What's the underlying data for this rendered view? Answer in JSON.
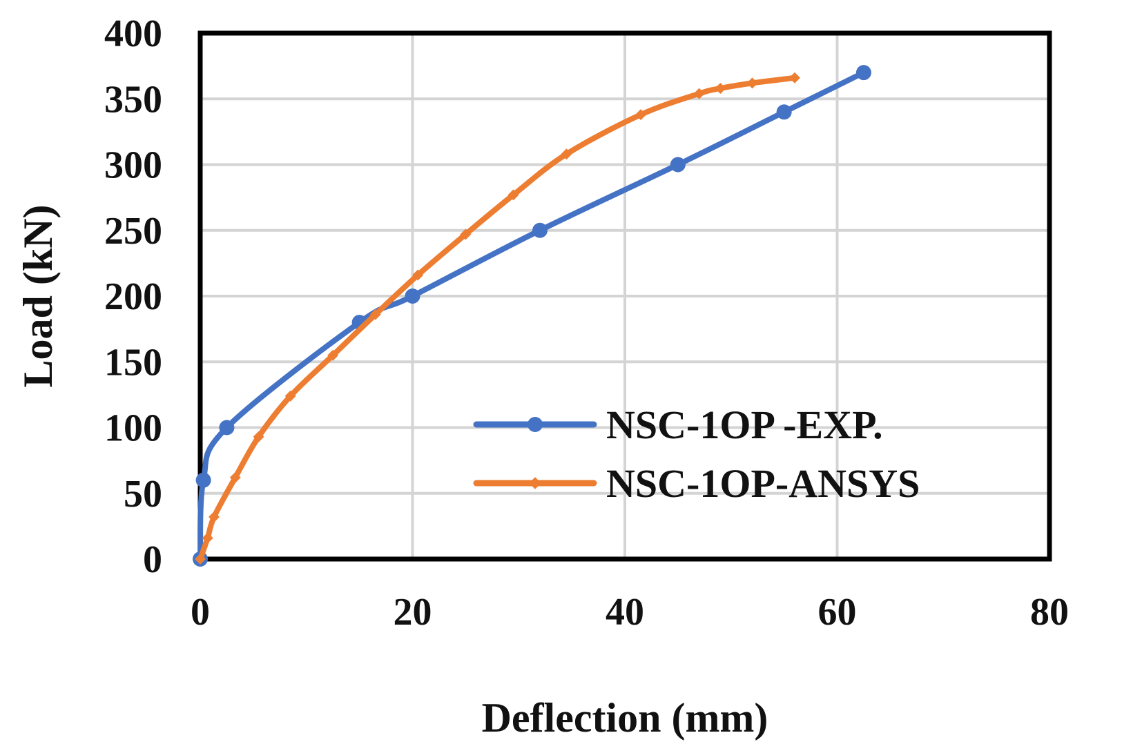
{
  "chart_data": {
    "type": "line",
    "title": "",
    "xlabel": "Deflection (mm)",
    "ylabel": "Load (kN)",
    "xlim": [
      0,
      80
    ],
    "ylim": [
      0,
      400
    ],
    "xticks": [
      0,
      20,
      40,
      60,
      80
    ],
    "yticks": [
      0,
      50,
      100,
      150,
      200,
      250,
      300,
      350,
      400
    ],
    "grid": true,
    "legend_position": "bottom-right",
    "series": [
      {
        "name": "NSC-1OP -EXP.",
        "color": "#4472C4",
        "marker": "circle",
        "x": [
          0,
          0.3,
          2.5,
          15,
          20,
          32,
          45,
          55,
          62.5
        ],
        "y": [
          0,
          60,
          100,
          180,
          200,
          250,
          300,
          340,
          370
        ]
      },
      {
        "name": "NSC-1OP-ANSYS",
        "color": "#ED7D31",
        "marker": "diamond",
        "x": [
          0,
          0.7,
          1.3,
          3.3,
          5.5,
          8.5,
          12.5,
          16.5,
          20.5,
          25,
          29.5,
          34.5,
          41.5,
          47,
          49,
          52,
          56
        ],
        "y": [
          0,
          16,
          32,
          62,
          93,
          124,
          155,
          186,
          216,
          247,
          277,
          308,
          338,
          354,
          358,
          362,
          366
        ]
      }
    ]
  }
}
